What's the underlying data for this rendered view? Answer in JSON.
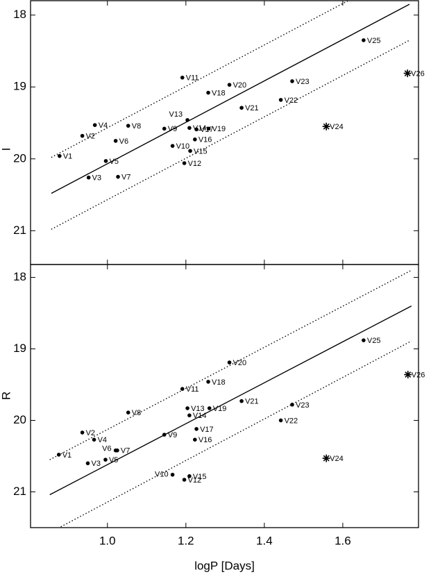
{
  "chart_data": [
    {
      "type": "scatter",
      "ylabel": "I",
      "xlim": [
        0.804,
        1.793
      ],
      "ylim": [
        21.47,
        17.8
      ],
      "xticks": [
        1,
        1.2,
        1.4,
        1.6
      ],
      "yticks": [
        18,
        19,
        20,
        21
      ],
      "series": [
        {
          "marker": "dot",
          "x": [
            0.878,
            0.936,
            0.952,
            0.968,
            0.996,
            1.021,
            1.027,
            1.053,
            1.145,
            1.166,
            1.191,
            1.196,
            1.204,
            1.209,
            1.211,
            1.223,
            1.227,
            1.257,
            1.258,
            1.311,
            1.342,
            1.442,
            1.471,
            1.653
          ],
          "values": [
            19.96,
            19.68,
            20.26,
            19.53,
            20.03,
            19.75,
            20.25,
            19.54,
            19.58,
            19.82,
            18.87,
            20.06,
            19.46,
            19.57,
            19.89,
            19.73,
            19.59,
            19.08,
            19.58,
            18.97,
            19.29,
            19.18,
            18.92,
            18.35
          ],
          "labels": [
            "V1",
            "V2",
            "V3",
            "V4",
            "V5",
            "V6",
            "V7",
            "V8",
            "V9",
            "V10",
            "V11",
            "V12",
            "V13",
            "V14",
            "V15",
            "V16",
            "V17",
            "V18",
            "V19",
            "V20",
            "V21",
            "V22",
            "V23",
            "V25"
          ]
        },
        {
          "marker": "star",
          "x": [
            1.558,
            1.765
          ],
          "values": [
            19.55,
            18.81
          ],
          "labels": [
            "V24",
            "V26"
          ]
        }
      ],
      "lines": [
        {
          "style": "solid",
          "x": [
            0.857,
            1.77
          ],
          "values": [
            20.48,
            17.85
          ]
        },
        {
          "style": "dotted",
          "x": [
            0.857,
            1.77
          ],
          "values": [
            19.98,
            17.35
          ]
        },
        {
          "style": "dotted",
          "x": [
            0.857,
            1.77
          ],
          "values": [
            20.98,
            18.35
          ]
        }
      ]
    },
    {
      "type": "scatter",
      "ylabel": "R",
      "xlabel": "logP [Days]",
      "xlim": [
        0.804,
        1.793
      ],
      "ylim": [
        21.5,
        17.82
      ],
      "xticks": [
        {
          "value": 1,
          "label": "1.0"
        },
        1.2,
        1.4,
        1.6
      ],
      "yticks": [
        18,
        19,
        20,
        21
      ],
      "series": [
        {
          "marker": "dot",
          "x": [
            0.876,
            0.936,
            0.95,
            0.966,
            0.995,
            1.021,
            1.025,
            1.053,
            1.145,
            1.166,
            1.191,
            1.196,
            1.204,
            1.209,
            1.209,
            1.223,
            1.227,
            1.257,
            1.26,
            1.311,
            1.342,
            1.442,
            1.471,
            1.653
          ],
          "values": [
            20.48,
            20.17,
            20.6,
            20.27,
            20.55,
            20.42,
            20.42,
            19.89,
            20.2,
            20.76,
            19.56,
            20.83,
            19.83,
            19.93,
            20.78,
            20.27,
            20.12,
            19.46,
            19.83,
            19.19,
            19.73,
            20.0,
            19.78,
            18.88
          ],
          "labels": [
            "V1",
            "V2",
            "V3",
            "V4",
            "V5",
            "V6",
            "V7",
            "V8",
            "V9",
            "V10",
            "V11",
            "V12",
            "V13",
            "V14",
            "V15",
            "V16",
            "V17",
            "V18",
            "V19",
            "V20",
            "V21",
            "V22",
            "V23",
            "V25"
          ]
        },
        {
          "marker": "star",
          "x": [
            1.558,
            1.766
          ],
          "values": [
            20.53,
            19.36
          ],
          "labels": [
            "V24",
            "V26"
          ]
        }
      ],
      "lines": [
        {
          "style": "solid",
          "x": [
            0.853,
            1.775
          ],
          "values": [
            21.04,
            18.4
          ]
        },
        {
          "style": "dotted",
          "x": [
            0.853,
            1.775
          ],
          "values": [
            20.55,
            17.9
          ]
        },
        {
          "style": "dotted",
          "x": [
            0.853,
            1.775
          ],
          "values": [
            21.57,
            18.89
          ]
        }
      ]
    }
  ]
}
